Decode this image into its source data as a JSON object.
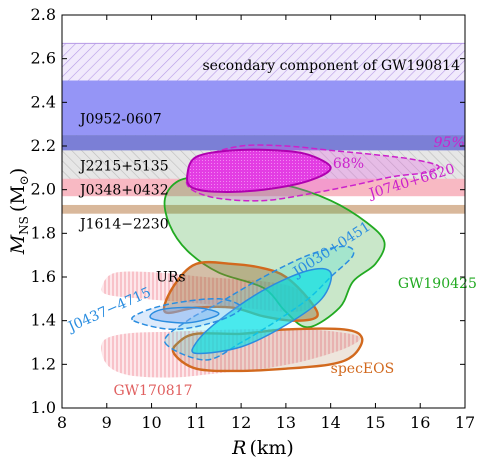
{
  "chart_data": {
    "type": "area",
    "title": "",
    "xlabel": "R (km)",
    "xlabel_main": "R",
    "xlabel_unit": "(km)",
    "ylabel": "M_NS (M⊙)",
    "ylabel_main": "M",
    "ylabel_sub": "NS",
    "ylabel_unit": "(M",
    "ylabel_sun": "⊙",
    "ylabel_close": ")",
    "xlim": [
      8,
      17
    ],
    "ylim": [
      1.0,
      2.8
    ],
    "xticks": [
      8,
      9,
      10,
      11,
      12,
      13,
      14,
      15,
      16,
      17
    ],
    "yticks": [
      1.0,
      1.2,
      1.4,
      1.6,
      1.8,
      2.0,
      2.2,
      2.4,
      2.6,
      2.8
    ],
    "grid": false,
    "mass_bands": [
      {
        "name": "secondary component of GW190814",
        "ymin": 2.5,
        "ymax": 2.67,
        "color": "#b69ae6",
        "style": "hatch"
      },
      {
        "name": "J0952-0607",
        "ymin": 2.18,
        "ymax": 2.5,
        "color": "#8f8ff5",
        "style": "solid"
      },
      {
        "name": "J2215+5135",
        "ymin": 2.02,
        "ymax": 2.25,
        "color": "#b5b5b5",
        "style": "hatch"
      },
      {
        "name": "J0348+0432",
        "ymin": 1.97,
        "ymax": 2.05,
        "color": "#f5a8b4",
        "style": "solid"
      },
      {
        "name": "J1614−2230",
        "ymin": 1.89,
        "ymax": 1.93,
        "color": "#d9b89b",
        "style": "solid"
      }
    ],
    "series": [
      {
        "name": "J0740+6620",
        "label_95": "95%",
        "label_68": "68%",
        "color": "#cc22cc",
        "contour_95": [
          [
            10.8,
            2.06
          ],
          [
            11.2,
            2.15
          ],
          [
            12.0,
            2.2
          ],
          [
            13.0,
            2.2
          ],
          [
            14.0,
            2.18
          ],
          [
            15.0,
            2.16
          ],
          [
            15.8,
            2.14
          ],
          [
            16.4,
            2.11
          ],
          [
            16.2,
            2.08
          ],
          [
            15.4,
            2.06
          ],
          [
            14.5,
            2.02
          ],
          [
            13.5,
            1.98
          ],
          [
            12.5,
            1.95
          ],
          [
            11.5,
            1.96
          ],
          [
            10.9,
            2.0
          ]
        ],
        "contour_68": [
          [
            10.8,
            2.07
          ],
          [
            11.0,
            2.15
          ],
          [
            11.8,
            2.18
          ],
          [
            12.8,
            2.18
          ],
          [
            13.5,
            2.16
          ],
          [
            14.0,
            2.1
          ],
          [
            13.5,
            2.04
          ],
          [
            12.5,
            2.0
          ],
          [
            11.5,
            1.99
          ],
          [
            10.9,
            2.01
          ]
        ]
      },
      {
        "name": "GW190425",
        "color": "#22aa22",
        "contour": [
          [
            11.2,
            2.06
          ],
          [
            12.0,
            2.04
          ],
          [
            13.0,
            2.02
          ],
          [
            14.0,
            1.95
          ],
          [
            14.8,
            1.85
          ],
          [
            15.2,
            1.76
          ],
          [
            15.0,
            1.66
          ],
          [
            14.5,
            1.58
          ],
          [
            14.2,
            1.46
          ],
          [
            13.5,
            1.37
          ],
          [
            13.0,
            1.44
          ],
          [
            12.5,
            1.55
          ],
          [
            11.5,
            1.62
          ],
          [
            10.8,
            1.72
          ],
          [
            10.4,
            1.84
          ],
          [
            10.3,
            1.96
          ],
          [
            10.6,
            2.04
          ]
        ]
      },
      {
        "name": "J0030+0451",
        "color": "#2a8de0",
        "contour_95": [
          [
            10.3,
            1.3
          ],
          [
            11.2,
            1.22
          ],
          [
            12.0,
            1.3
          ],
          [
            12.8,
            1.4
          ],
          [
            13.5,
            1.5
          ],
          [
            14.0,
            1.6
          ],
          [
            14.5,
            1.7
          ],
          [
            14.3,
            1.74
          ],
          [
            13.5,
            1.7
          ],
          [
            12.5,
            1.6
          ],
          [
            11.5,
            1.48
          ],
          [
            10.8,
            1.4
          ]
        ],
        "contour_68": [
          [
            11.0,
            1.25
          ],
          [
            12.0,
            1.28
          ],
          [
            13.0,
            1.38
          ],
          [
            13.8,
            1.5
          ],
          [
            14.0,
            1.62
          ],
          [
            13.5,
            1.63
          ],
          [
            12.5,
            1.54
          ],
          [
            11.5,
            1.4
          ],
          [
            11.0,
            1.3
          ]
        ]
      },
      {
        "name": "J0437−4715",
        "color": "#2a8de0",
        "contour_95": [
          [
            9.6,
            1.4
          ],
          [
            10.5,
            1.36
          ],
          [
            11.5,
            1.4
          ],
          [
            12.0,
            1.46
          ],
          [
            11.5,
            1.5
          ],
          [
            10.5,
            1.48
          ],
          [
            9.8,
            1.44
          ]
        ],
        "contour_68": [
          [
            10.0,
            1.41
          ],
          [
            10.8,
            1.39
          ],
          [
            11.5,
            1.43
          ],
          [
            11.0,
            1.46
          ],
          [
            10.2,
            1.45
          ]
        ]
      },
      {
        "name": "specEOS",
        "color": "#d2691e",
        "contour_upper": [
          [
            10.3,
            1.44
          ],
          [
            10.5,
            1.56
          ],
          [
            11.0,
            1.66
          ],
          [
            11.8,
            1.66
          ],
          [
            12.5,
            1.64
          ],
          [
            13.0,
            1.6
          ],
          [
            13.5,
            1.5
          ],
          [
            13.7,
            1.42
          ],
          [
            13.2,
            1.4
          ],
          [
            12.5,
            1.42
          ],
          [
            11.8,
            1.46
          ],
          [
            11.0,
            1.46
          ]
        ],
        "contour_lower": [
          [
            10.5,
            1.25
          ],
          [
            11.0,
            1.18
          ],
          [
            12.0,
            1.17
          ],
          [
            13.0,
            1.18
          ],
          [
            14.0,
            1.2
          ],
          [
            14.5,
            1.24
          ],
          [
            14.7,
            1.32
          ],
          [
            14.3,
            1.36
          ],
          [
            13.0,
            1.36
          ],
          [
            12.0,
            1.34
          ],
          [
            11.0,
            1.34
          ],
          [
            10.6,
            1.3
          ]
        ]
      },
      {
        "name": "GW170817",
        "color": "#f08080",
        "contour_upper": [
          [
            8.9,
            1.56
          ],
          [
            9.2,
            1.62
          ],
          [
            10.2,
            1.62
          ],
          [
            11.2,
            1.6
          ],
          [
            12.5,
            1.58
          ],
          [
            13.2,
            1.55
          ],
          [
            13.6,
            1.48
          ],
          [
            13.2,
            1.44
          ],
          [
            12.0,
            1.46
          ],
          [
            11.0,
            1.48
          ],
          [
            9.8,
            1.5
          ],
          [
            9.0,
            1.52
          ]
        ],
        "contour_lower": [
          [
            8.9,
            1.3
          ],
          [
            9.0,
            1.2
          ],
          [
            9.5,
            1.15
          ],
          [
            10.5,
            1.14
          ],
          [
            11.5,
            1.16
          ],
          [
            12.5,
            1.18
          ],
          [
            13.5,
            1.22
          ],
          [
            14.4,
            1.28
          ],
          [
            14.6,
            1.33
          ],
          [
            13.5,
            1.36
          ],
          [
            12.0,
            1.36
          ],
          [
            10.5,
            1.35
          ],
          [
            9.4,
            1.34
          ]
        ]
      }
    ],
    "annotations": [
      {
        "text": "URs",
        "x": 10.1,
        "y": 1.58,
        "color": "#000000"
      },
      {
        "text": "GW170817",
        "x": 9.2,
        "y": 1.06,
        "color": "#e06060"
      },
      {
        "text": "specEOS",
        "x": 14.0,
        "y": 1.16,
        "color": "#d2691e"
      },
      {
        "text": "GW190425",
        "x": 15.5,
        "y": 1.56,
        "color": "#22aa22"
      }
    ]
  }
}
